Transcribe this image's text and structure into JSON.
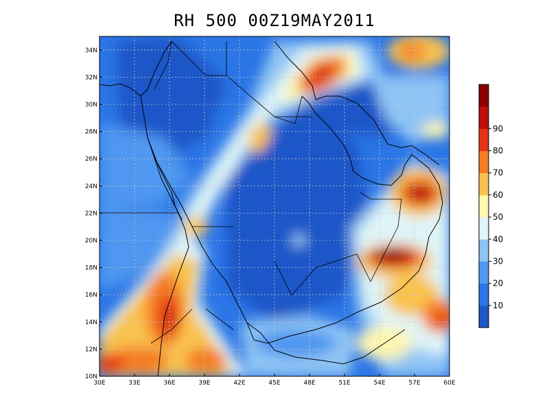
{
  "title": "RH 500 00Z19MAY2011",
  "map": {
    "lon_range": [
      30,
      60
    ],
    "lat_range": [
      10,
      35
    ],
    "lon_ticks": [
      "30E",
      "33E",
      "36E",
      "39E",
      "42E",
      "45E",
      "48E",
      "51E",
      "54E",
      "57E",
      "60E"
    ],
    "lat_ticks": [
      "10N",
      "12N",
      "14N",
      "16N",
      "18N",
      "20N",
      "22N",
      "24N",
      "26N",
      "28N",
      "30N",
      "32N",
      "34N"
    ],
    "grid": "dotted"
  },
  "colorbar": {
    "labels": [
      "10",
      "20",
      "30",
      "40",
      "50",
      "60",
      "70",
      "80",
      "90"
    ],
    "colors": [
      "#1f56c8",
      "#2b75e6",
      "#4f97f0",
      "#8ec4f4",
      "#dff4f7",
      "#fdf6b0",
      "#f9c24e",
      "#f47c24",
      "#e53318",
      "#bd0f0b",
      "#8c0000"
    ]
  }
}
